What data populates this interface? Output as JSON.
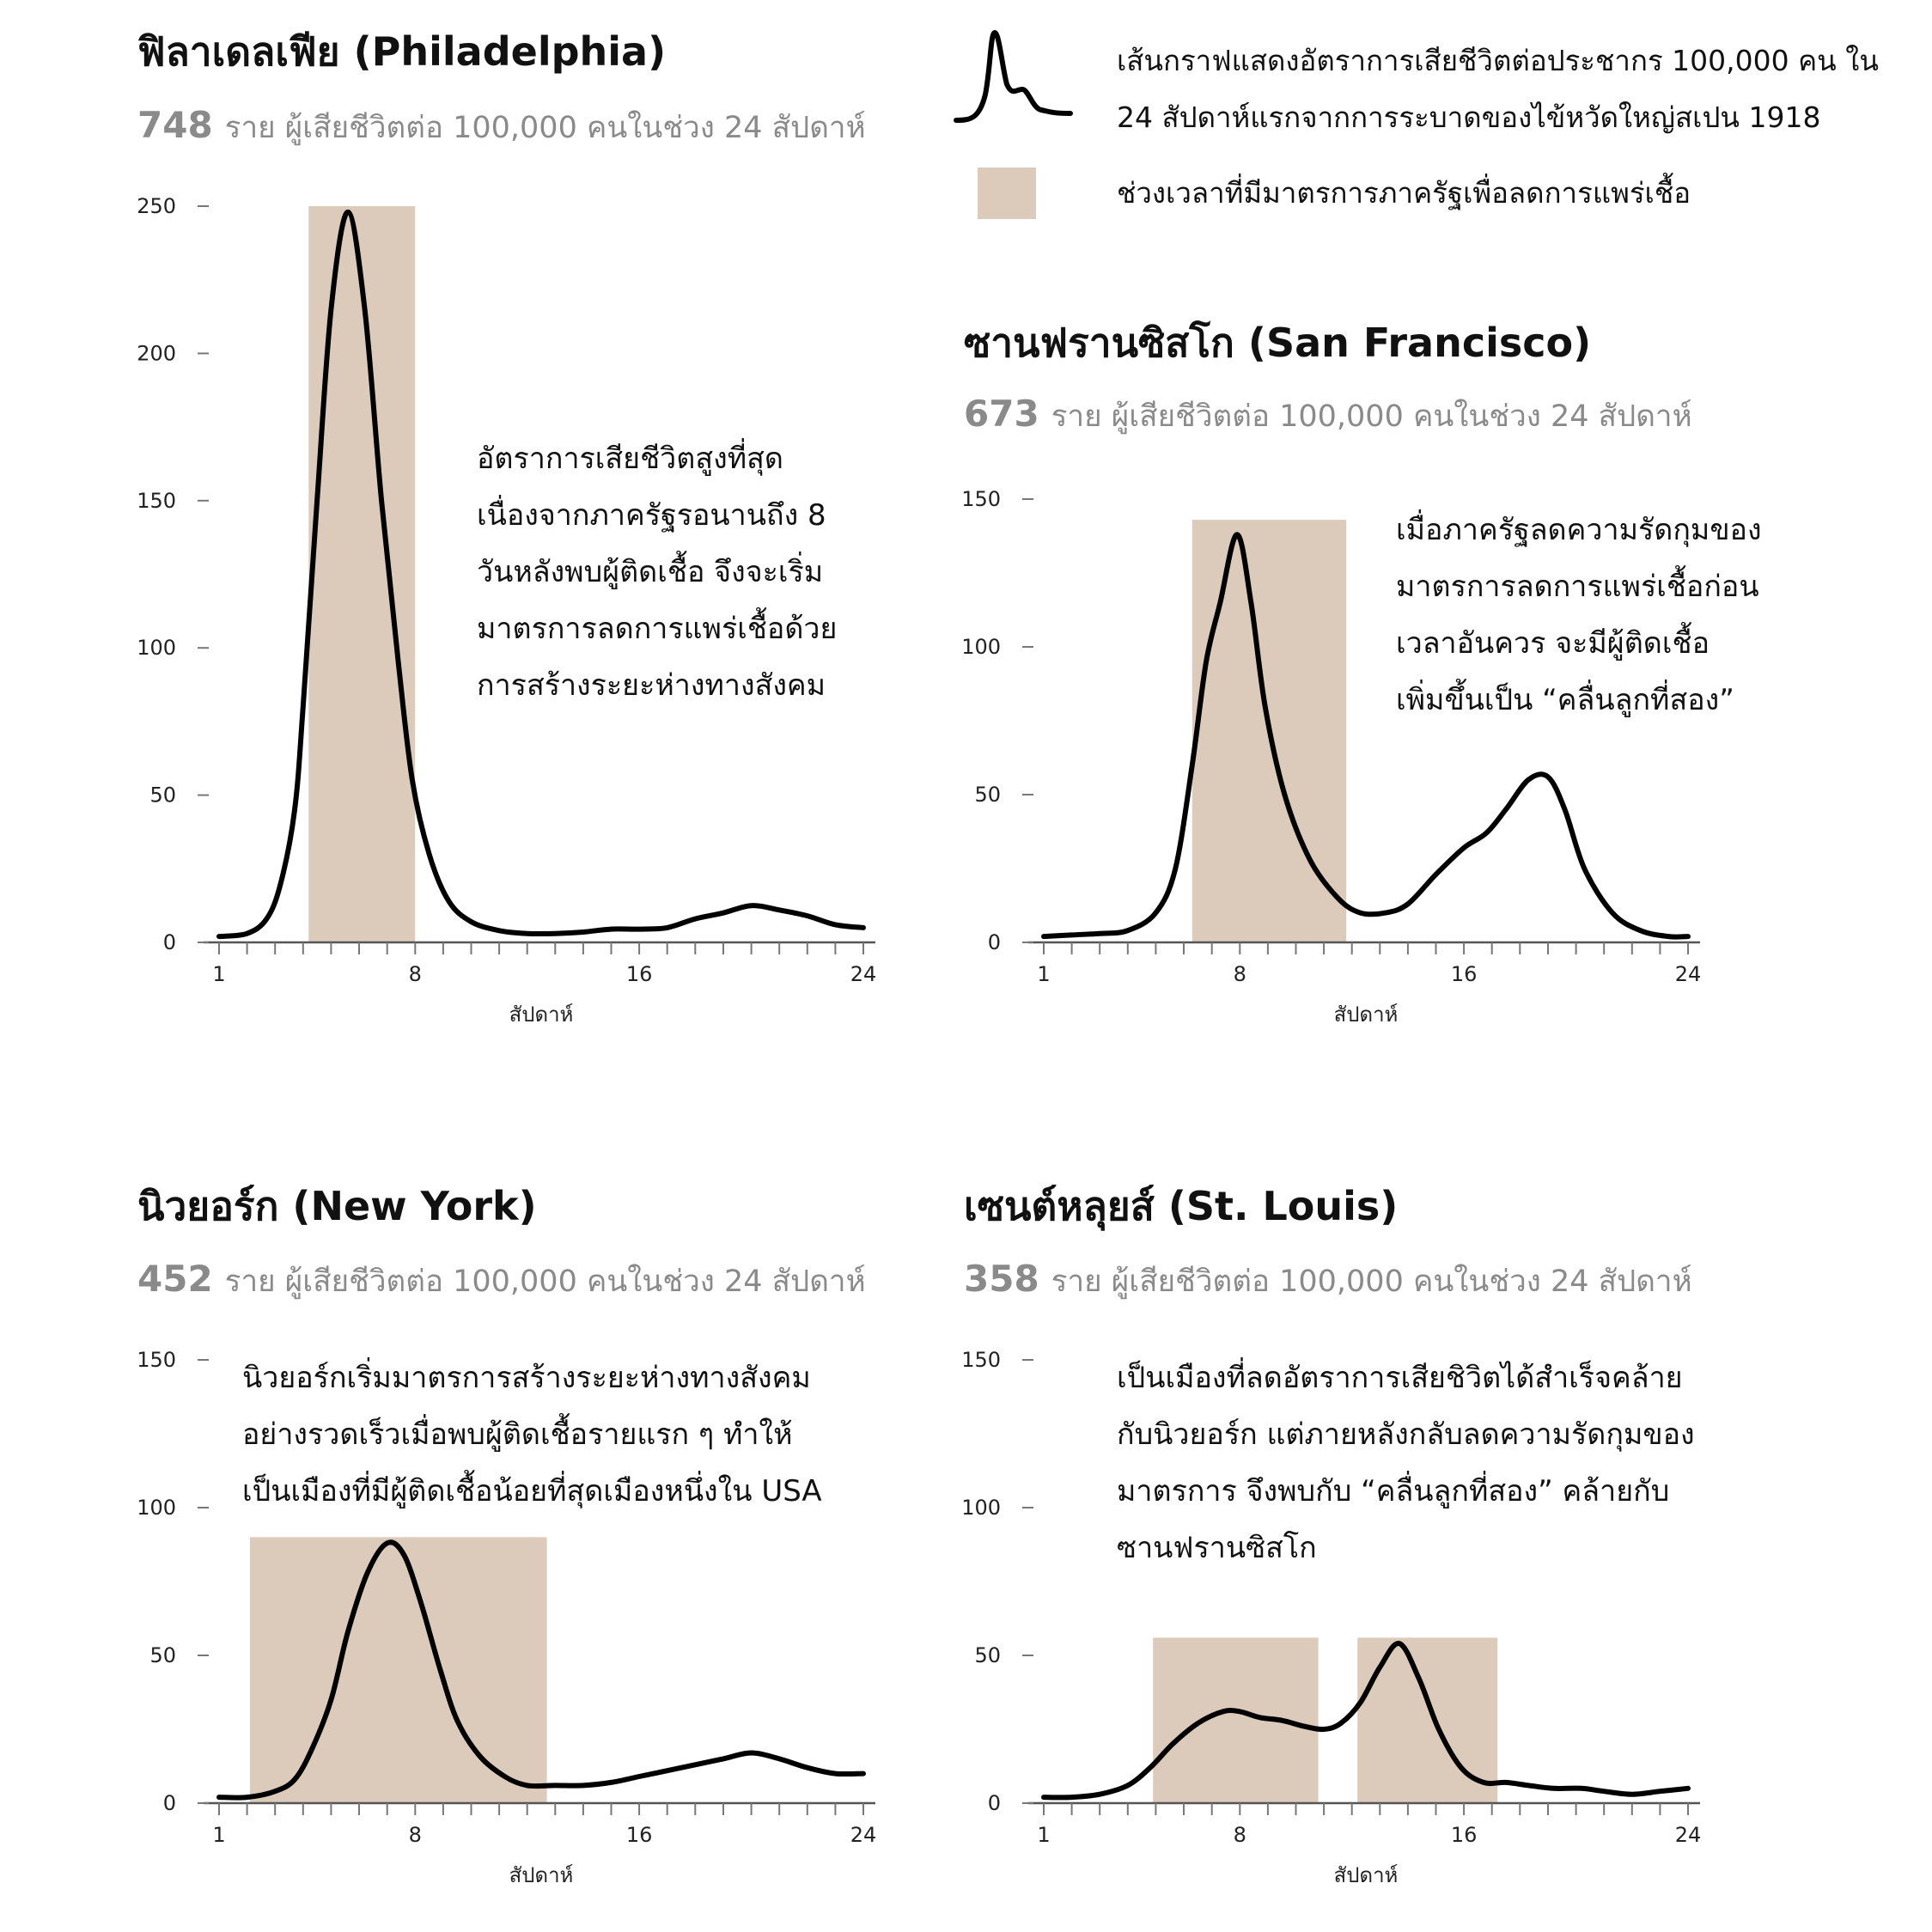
{
  "legend": {
    "line_text_1": "เส้นกราฟแสดงอัตราการเสียชีวิตต่อประชากร 100,000 คน ใน",
    "line_text_2": "24 สัปดาห์แรกจากการระบาดของไข้หวัดใหญ่สเปน 1918",
    "band_text": "ช่วงเวลาที่มีมาตรการภาครัฐเพื่อลดการแพร่เชื้อ",
    "band_color": "#dccabb",
    "line_color": "#000000"
  },
  "chart_data": [
    {
      "type": "line",
      "id": "philadelphia",
      "title": "ฟิลาเดลเฟีย (Philadelphia)",
      "total": "748",
      "subtitle": "ราย ผู้เสียชีวิตต่อ 100,000 คนในช่วง 24 สัปดาห์",
      "xlabel": "สัปดาห์",
      "ylabel": "",
      "xlim": [
        1,
        24
      ],
      "ylim": [
        0,
        250
      ],
      "xticks": [
        1,
        8,
        16,
        24
      ],
      "yticks": [
        0,
        50,
        100,
        150,
        200,
        250
      ],
      "annotation": [
        "อัตราการเสียชีวิตสูงที่สุด",
        "เนื่องจากภาครัฐรอนานถึง 8",
        "วันหลังพบผู้ติดเชื้อ จึงจะเริ่ม",
        "มาตรการลดการแพร่เชื้อด้วย",
        "การสร้างระยะห่างทางสังคม"
      ],
      "intervention": [
        [
          4.2,
          8.0
        ]
      ],
      "points": [
        [
          1,
          2
        ],
        [
          2,
          3
        ],
        [
          2.7,
          8
        ],
        [
          3.2,
          20
        ],
        [
          3.7,
          45
        ],
        [
          4.0,
          80
        ],
        [
          4.5,
          150
        ],
        [
          5.0,
          215
        ],
        [
          5.6,
          248
        ],
        [
          6.2,
          215
        ],
        [
          6.8,
          150
        ],
        [
          7.4,
          95
        ],
        [
          7.9,
          55
        ],
        [
          8.5,
          30
        ],
        [
          9.2,
          14
        ],
        [
          10,
          7
        ],
        [
          11,
          4
        ],
        [
          12,
          3
        ],
        [
          13,
          3
        ],
        [
          14,
          3.5
        ],
        [
          15,
          4.5
        ],
        [
          16,
          4.5
        ],
        [
          17,
          5
        ],
        [
          18,
          8
        ],
        [
          19,
          10
        ],
        [
          20,
          12.5
        ],
        [
          21,
          11
        ],
        [
          22,
          9
        ],
        [
          23,
          6
        ],
        [
          24,
          5
        ]
      ]
    },
    {
      "type": "line",
      "id": "san-francisco",
      "title": "ซานฟรานซิสโก (San Francisco)",
      "total": "673",
      "subtitle": "ราย ผู้เสียชีวิตต่อ 100,000 คนในช่วง 24 สัปดาห์",
      "xlabel": "สัปดาห์",
      "ylabel": "",
      "xlim": [
        1,
        24
      ],
      "ylim": [
        0,
        150
      ],
      "xticks": [
        1,
        8,
        16,
        24
      ],
      "yticks": [
        0,
        50,
        100,
        150
      ],
      "annotation": [
        "เมื่อภาครัฐลดความรัดกุมของ",
        "มาตรการลดการแพร่เชื้อก่อน",
        "เวลาอันควร จะมีผู้ติดเชื้อ",
        "เพิ่มขึ้นเป็น “คลื่นลูกที่สอง”"
      ],
      "intervention": [
        [
          6.3,
          11.8
        ]
      ],
      "points": [
        [
          1,
          2
        ],
        [
          2,
          2.5
        ],
        [
          3,
          3
        ],
        [
          4,
          4
        ],
        [
          5,
          10
        ],
        [
          5.7,
          25
        ],
        [
          6.3,
          60
        ],
        [
          6.8,
          95
        ],
        [
          7.3,
          115
        ],
        [
          7.9,
          138
        ],
        [
          8.4,
          115
        ],
        [
          8.9,
          80
        ],
        [
          9.6,
          50
        ],
        [
          10.5,
          28
        ],
        [
          11.5,
          15
        ],
        [
          12.3,
          10
        ],
        [
          13.2,
          10
        ],
        [
          14,
          13
        ],
        [
          15,
          23
        ],
        [
          16,
          32
        ],
        [
          16.8,
          37
        ],
        [
          17.5,
          45
        ],
        [
          18.3,
          55
        ],
        [
          19,
          56
        ],
        [
          19.6,
          45
        ],
        [
          20.3,
          25
        ],
        [
          21.3,
          10
        ],
        [
          22.3,
          4
        ],
        [
          23.3,
          2
        ],
        [
          24,
          2
        ]
      ]
    },
    {
      "type": "line",
      "id": "new-york",
      "title": "นิวยอร์ก (New York)",
      "total": "452",
      "subtitle": "ราย ผู้เสียชีวิตต่อ 100,000 คนในช่วง 24 สัปดาห์",
      "xlabel": "สัปดาห์",
      "ylabel": "",
      "xlim": [
        1,
        24
      ],
      "ylim": [
        0,
        150
      ],
      "xticks": [
        1,
        8,
        16,
        24
      ],
      "yticks": [
        0,
        50,
        100,
        150
      ],
      "annotation": [
        "นิวยอร์กเริ่มมาตรการสร้างระยะห่างทางสังคม",
        "อย่างรวดเร็วเมื่อพบผู้ติดเชื้อรายแรก ๆ ทำให้",
        "เป็นเมืองที่มีผู้ติดเชื้อน้อยที่สุดเมืองหนึ่งใน USA"
      ],
      "intervention": [
        [
          2.1,
          12.7
        ]
      ],
      "points": [
        [
          1,
          2
        ],
        [
          2,
          2
        ],
        [
          3,
          4
        ],
        [
          3.7,
          8
        ],
        [
          4.3,
          18
        ],
        [
          5.0,
          35
        ],
        [
          5.6,
          58
        ],
        [
          6.3,
          78
        ],
        [
          7.0,
          88
        ],
        [
          7.6,
          84
        ],
        [
          8.2,
          68
        ],
        [
          8.9,
          45
        ],
        [
          9.5,
          28
        ],
        [
          10.3,
          16
        ],
        [
          11.2,
          9
        ],
        [
          12,
          6
        ],
        [
          13,
          6
        ],
        [
          14,
          6
        ],
        [
          15,
          7
        ],
        [
          16,
          9
        ],
        [
          17,
          11
        ],
        [
          18,
          13
        ],
        [
          19,
          15
        ],
        [
          20,
          17
        ],
        [
          21,
          15
        ],
        [
          22,
          12
        ],
        [
          23,
          10
        ],
        [
          24,
          10
        ]
      ]
    },
    {
      "type": "line",
      "id": "st-louis",
      "title": "เซนต์หลุยส์ (St. Louis)",
      "total": "358",
      "subtitle": "ราย ผู้เสียชีวิตต่อ 100,000 คนในช่วง 24 สัปดาห์",
      "xlabel": "สัปดาห์",
      "ylabel": "",
      "xlim": [
        1,
        24
      ],
      "ylim": [
        0,
        150
      ],
      "xticks": [
        1,
        8,
        16,
        24
      ],
      "yticks": [
        0,
        50,
        100,
        150
      ],
      "annotation": [
        "เป็นเมืองที่ลดอัตราการเสียชิวิตได้สำเร็จคล้าย",
        "กับนิวยอร์ก แต่ภายหลังกลับลดความรัดกุมของ",
        "มาตรการ จึงพบกับ “คลื่นลูกที่สอง” คล้ายกับ",
        "ซานฟรานซิสโก"
      ],
      "intervention": [
        [
          4.9,
          10.8
        ],
        [
          12.2,
          17.2
        ]
      ],
      "points": [
        [
          1,
          2
        ],
        [
          2,
          2
        ],
        [
          3,
          3
        ],
        [
          4,
          6
        ],
        [
          4.8,
          12
        ],
        [
          5.6,
          20
        ],
        [
          6.5,
          27
        ],
        [
          7.4,
          31
        ],
        [
          8.0,
          31
        ],
        [
          8.7,
          29
        ],
        [
          9.5,
          28
        ],
        [
          10.3,
          26
        ],
        [
          11.0,
          25
        ],
        [
          11.6,
          27
        ],
        [
          12.3,
          34
        ],
        [
          13.0,
          46
        ],
        [
          13.7,
          54
        ],
        [
          14.4,
          42
        ],
        [
          15.1,
          25
        ],
        [
          15.9,
          12
        ],
        [
          16.7,
          7
        ],
        [
          17.5,
          7
        ],
        [
          18.3,
          6
        ],
        [
          19.2,
          5
        ],
        [
          20.2,
          5
        ],
        [
          21,
          4
        ],
        [
          22,
          3
        ],
        [
          23,
          4
        ],
        [
          24,
          5
        ]
      ]
    }
  ]
}
